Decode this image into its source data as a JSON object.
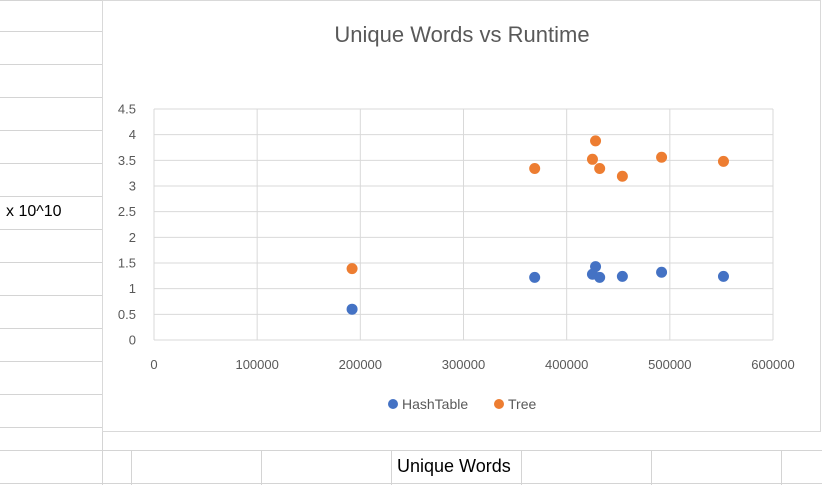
{
  "sheet": {
    "y_label_cell": "x 10^10",
    "x_label_cell": "Unique Words"
  },
  "colors": {
    "hashtable": "#4472c4",
    "tree": "#ed7d31",
    "gridline": "#d9d9d9",
    "cell_border": "#d4d4d4",
    "title": "#595959",
    "tick_text": "#595959"
  },
  "chart_data": {
    "type": "scatter",
    "title": "Unique Words vs Runtime",
    "xlabel": "",
    "ylabel": "",
    "xlim": [
      0,
      600000
    ],
    "ylim": [
      0,
      4.5
    ],
    "x_ticks": [
      "0",
      "100000",
      "200000",
      "300000",
      "400000",
      "500000",
      "600000"
    ],
    "y_ticks": [
      "0",
      "0.5",
      "1",
      "1.5",
      "2",
      "2.5",
      "3",
      "3.5",
      "4",
      "4.5"
    ],
    "grid": true,
    "legend_position": "bottom",
    "series": [
      {
        "name": "HashTable",
        "x": [
          192000,
          369000,
          425000,
          428000,
          432000,
          454000,
          492000,
          552000
        ],
        "y": [
          0.6,
          1.22,
          1.28,
          1.43,
          1.22,
          1.24,
          1.32,
          1.24
        ]
      },
      {
        "name": "Tree",
        "x": [
          192000,
          369000,
          425000,
          428000,
          432000,
          454000,
          492000,
          552000
        ],
        "y": [
          1.39,
          3.34,
          3.52,
          3.88,
          3.34,
          3.19,
          3.56,
          3.48
        ]
      }
    ]
  }
}
